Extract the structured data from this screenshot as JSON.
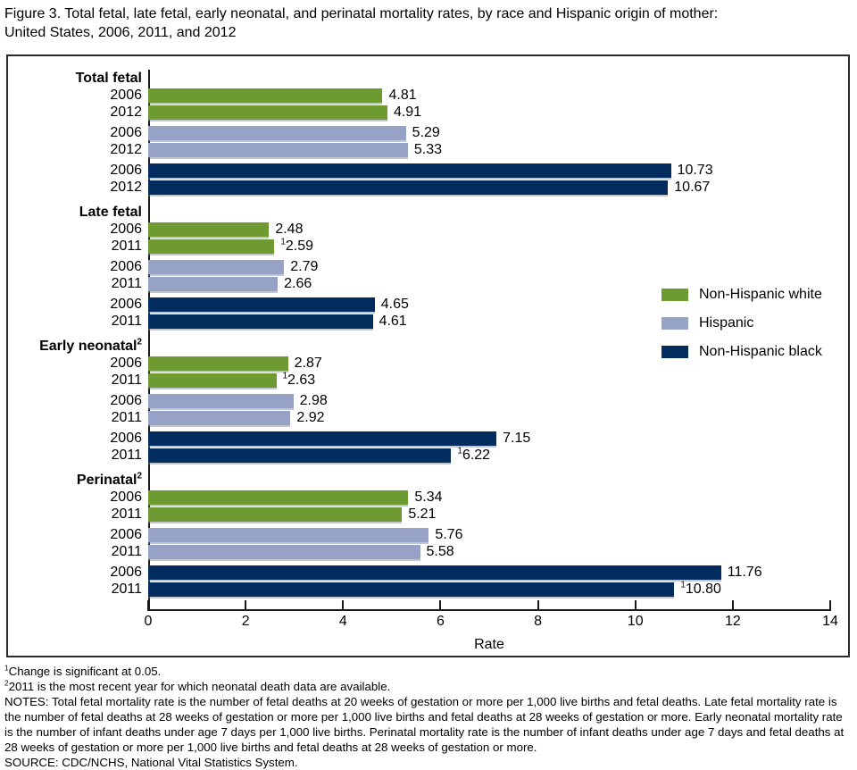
{
  "title": {
    "lines": [
      "Figure 3. Total fetal, late fetal, early neonatal, and perinatal mortality rates, by race and Hispanic origin of mother:",
      "United States, 2006, 2011, and 2012"
    ]
  },
  "chart_data": {
    "type": "bar",
    "orientation": "horizontal",
    "xlabel": "Rate",
    "xlim": [
      0,
      14
    ],
    "xticks": [
      0,
      2,
      4,
      6,
      8,
      10,
      12,
      14
    ],
    "grid": false,
    "legend_position": "right-middle",
    "legend": [
      {
        "label": "Non-Hispanic white",
        "color": "#6d9a31"
      },
      {
        "label": "Hispanic",
        "color": "#97a3c6"
      },
      {
        "label": "Non-Hispanic black",
        "color": "#032c5e"
      }
    ],
    "groups": [
      {
        "label": "Total fetal",
        "marker": "",
        "pairs": [
          {
            "series": "Non-Hispanic white",
            "bars": [
              {
                "year": "2006",
                "value": 4.81,
                "label": "4.81",
                "marker": ""
              },
              {
                "year": "2012",
                "value": 4.91,
                "label": "4.91",
                "marker": ""
              }
            ]
          },
          {
            "series": "Hispanic",
            "bars": [
              {
                "year": "2006",
                "value": 5.29,
                "label": "5.29",
                "marker": ""
              },
              {
                "year": "2012",
                "value": 5.33,
                "label": "5.33",
                "marker": ""
              }
            ]
          },
          {
            "series": "Non-Hispanic black",
            "bars": [
              {
                "year": "2006",
                "value": 10.73,
                "label": "10.73",
                "marker": ""
              },
              {
                "year": "2012",
                "value": 10.67,
                "label": "10.67",
                "marker": ""
              }
            ]
          }
        ]
      },
      {
        "label": "Late fetal",
        "marker": "",
        "pairs": [
          {
            "series": "Non-Hispanic white",
            "bars": [
              {
                "year": "2006",
                "value": 2.48,
                "label": "2.48",
                "marker": ""
              },
              {
                "year": "2011",
                "value": 2.59,
                "label": "2.59",
                "marker": "1"
              }
            ]
          },
          {
            "series": "Hispanic",
            "bars": [
              {
                "year": "2006",
                "value": 2.79,
                "label": "2.79",
                "marker": ""
              },
              {
                "year": "2011",
                "value": 2.66,
                "label": "2.66",
                "marker": ""
              }
            ]
          },
          {
            "series": "Non-Hispanic black",
            "bars": [
              {
                "year": "2006",
                "value": 4.65,
                "label": "4.65",
                "marker": ""
              },
              {
                "year": "2011",
                "value": 4.61,
                "label": "4.61",
                "marker": ""
              }
            ]
          }
        ]
      },
      {
        "label": "Early neonatal",
        "marker": "2",
        "pairs": [
          {
            "series": "Non-Hispanic white",
            "bars": [
              {
                "year": "2006",
                "value": 2.87,
                "label": "2.87",
                "marker": ""
              },
              {
                "year": "2011",
                "value": 2.63,
                "label": "2.63",
                "marker": "1"
              }
            ]
          },
          {
            "series": "Hispanic",
            "bars": [
              {
                "year": "2006",
                "value": 2.98,
                "label": "2.98",
                "marker": ""
              },
              {
                "year": "2011",
                "value": 2.92,
                "label": "2.92",
                "marker": ""
              }
            ]
          },
          {
            "series": "Non-Hispanic black",
            "bars": [
              {
                "year": "2006",
                "value": 7.15,
                "label": "7.15",
                "marker": ""
              },
              {
                "year": "2011",
                "value": 6.22,
                "label": "6.22",
                "marker": "1"
              }
            ]
          }
        ]
      },
      {
        "label": "Perinatal",
        "marker": "2",
        "pairs": [
          {
            "series": "Non-Hispanic white",
            "bars": [
              {
                "year": "2006",
                "value": 5.34,
                "label": "5.34",
                "marker": ""
              },
              {
                "year": "2011",
                "value": 5.21,
                "label": "5.21",
                "marker": ""
              }
            ]
          },
          {
            "series": "Hispanic",
            "bars": [
              {
                "year": "2006",
                "value": 5.76,
                "label": "5.76",
                "marker": ""
              },
              {
                "year": "2011",
                "value": 5.58,
                "label": "5.58",
                "marker": ""
              }
            ]
          },
          {
            "series": "Non-Hispanic black",
            "bars": [
              {
                "year": "2006",
                "value": 11.76,
                "label": "11.76",
                "marker": ""
              },
              {
                "year": "2011",
                "value": 10.8,
                "label": "10.80",
                "marker": "1"
              }
            ]
          }
        ]
      }
    ]
  },
  "footnotes": [
    {
      "marker": "1",
      "text": "Change is significant at 0.05."
    },
    {
      "marker": "2",
      "text": "2011 is the most recent year for which neonatal death data are available."
    },
    {
      "marker": "",
      "text": "NOTES: Total fetal mortality rate is the number of fetal deaths at 20 weeks of gestation or more per 1,000 live births and fetal deaths. Late fetal mortality rate is the number of fetal deaths at 28 weeks of gestation or more per 1,000 live births and fetal deaths at 28 weeks of gestation or more. Early neonatal mortality rate is the number of infant deaths under age 7 days per 1,000 live births. Perinatal mortality rate is the number of infant deaths under age 7 days and fetal deaths at 28 weeks of gestation or more per 1,000 live births and fetal deaths at 28 weeks of gestation or more."
    },
    {
      "marker": "",
      "text": "SOURCE: CDC/NCHS, National Vital Statistics System."
    }
  ]
}
